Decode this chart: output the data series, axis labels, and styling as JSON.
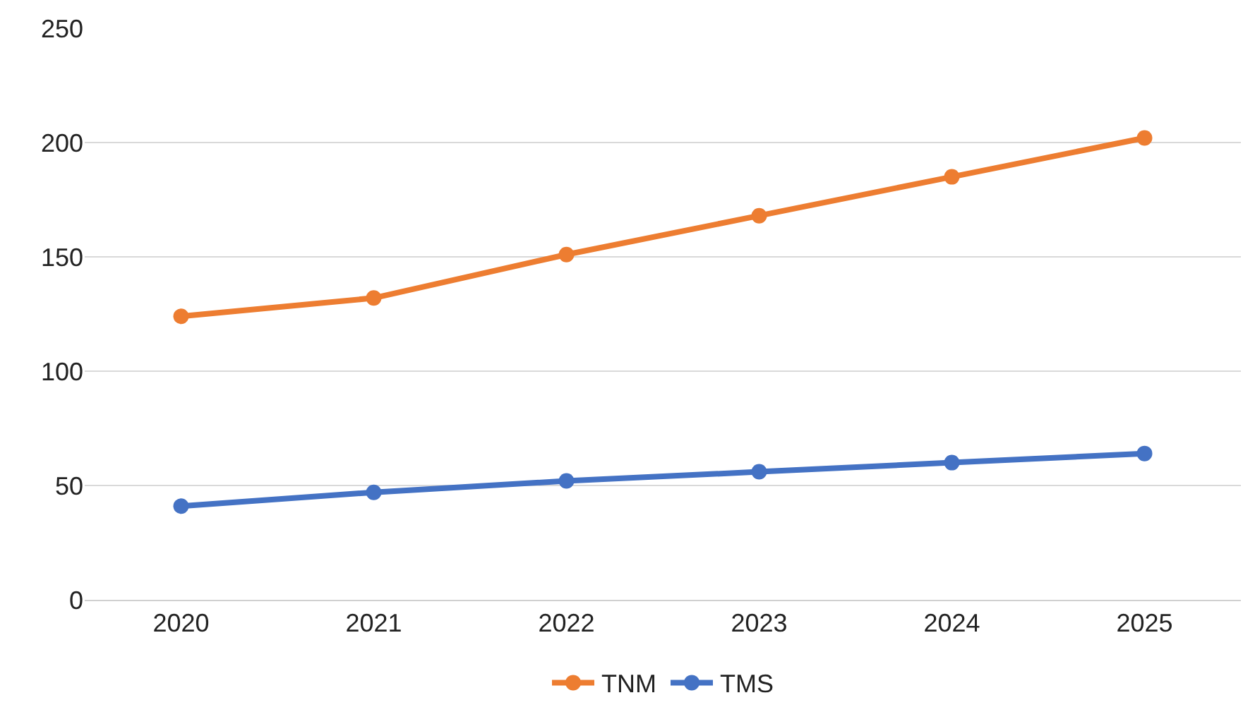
{
  "chart_data": {
    "type": "line",
    "categories": [
      "2020",
      "2021",
      "2022",
      "2023",
      "2024",
      "2025"
    ],
    "series": [
      {
        "name": "TNM",
        "color": "#ed7d31",
        "values": [
          124,
          132,
          151,
          168,
          185,
          202
        ]
      },
      {
        "name": "TMS",
        "color": "#4472c4",
        "values": [
          41,
          47,
          52,
          56,
          60,
          64
        ]
      }
    ],
    "ylim": [
      0,
      250
    ],
    "yticks": [
      0,
      50,
      100,
      150,
      200,
      250
    ],
    "grid": "y",
    "legend": "bottom",
    "marker": "circle",
    "line_style": "solid"
  }
}
